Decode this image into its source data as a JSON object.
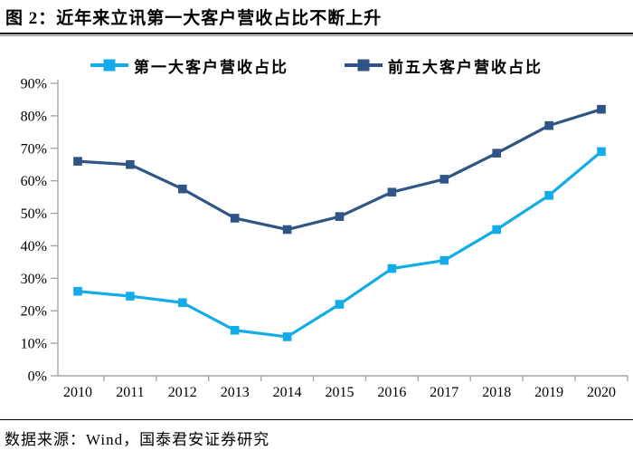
{
  "header": {
    "title": "图 2：近年来立讯第一大客户营收占比不断上升"
  },
  "chart_data": {
    "type": "line",
    "title": "近年来立讯第一大客户营收占比不断上升",
    "categories": [
      "2010",
      "2011",
      "2012",
      "2013",
      "2014",
      "2015",
      "2016",
      "2017",
      "2018",
      "2019",
      "2020"
    ],
    "series": [
      {
        "name": "第一大客户营收占比",
        "color": "#13ABE8",
        "marker": "square",
        "values": [
          26,
          24.5,
          22.5,
          14,
          12,
          22,
          33,
          35.5,
          45,
          55.5,
          69
        ]
      },
      {
        "name": "前五大客户营收占比",
        "color": "#2E5585",
        "marker": "square",
        "values": [
          66,
          65,
          57.5,
          48.5,
          45,
          49,
          56.5,
          60.5,
          68.5,
          77,
          82
        ]
      }
    ],
    "xlabel": "",
    "ylabel": "",
    "ylim": [
      0,
      90
    ],
    "ytick_step": 10,
    "ytick_suffix": "%",
    "yticks": [
      "0%",
      "10%",
      "20%",
      "30%",
      "40%",
      "50%",
      "60%",
      "70%",
      "80%",
      "90%"
    ],
    "grid": false,
    "legend_position": "top",
    "axis_color": "#A6A6A6",
    "text_color": "#000000"
  },
  "footer": {
    "source": "数据来源：Wind，国泰君安证券研究"
  }
}
